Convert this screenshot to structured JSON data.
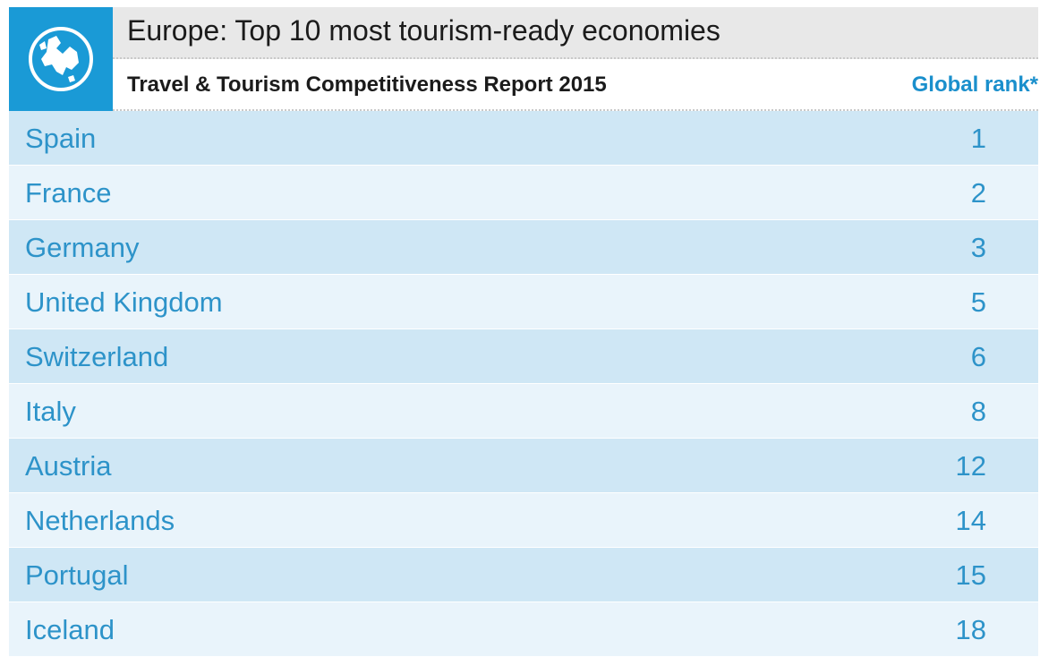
{
  "header": {
    "title": "Europe: Top 10 most tourism-ready economies",
    "subtitle": "Travel & Tourism Competitiveness Report 2015",
    "rank_column_label": "Global rank*"
  },
  "colors": {
    "brand": "#1a9ad6",
    "text_accent": "#2d93c9",
    "row_dark": "#cfe7f5",
    "row_light": "#e9f4fb"
  },
  "icon": "globe-europe-icon",
  "chart_data": {
    "type": "table",
    "title": "Europe: Top 10 most tourism-ready economies",
    "subtitle": "Travel & Tourism Competitiveness Report 2015",
    "columns": [
      "",
      "Global rank*"
    ],
    "categories": [
      "Spain",
      "France",
      "Germany",
      "United Kingdom",
      "Switzerland",
      "Italy",
      "Austria",
      "Netherlands",
      "Portugal",
      "Iceland"
    ],
    "values": [
      1,
      2,
      3,
      5,
      6,
      8,
      12,
      14,
      15,
      18
    ]
  }
}
